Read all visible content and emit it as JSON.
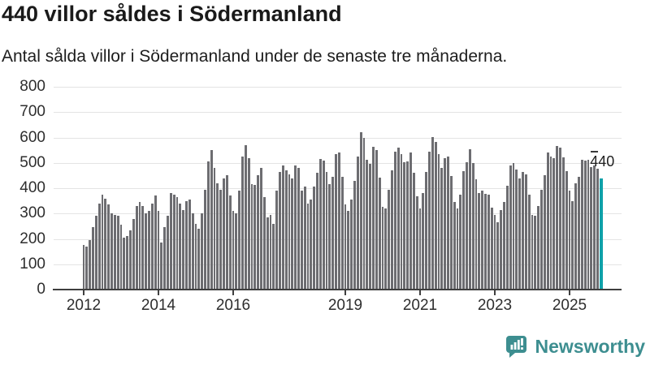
{
  "header": {
    "title": "440 villor såldes i Södermanland",
    "subtitle": "Antal sålda villor i Södermanland under de senaste tre månaderna."
  },
  "chart_data": {
    "type": "bar",
    "title": "440 villor såldes i Södermanland",
    "subtitle": "Antal sålda villor i Södermanland under de senaste tre månaderna.",
    "x_start_month": "2012-01",
    "x_end_month": "2025-11",
    "x_tick_labels": [
      "2012",
      "2014",
      "2016",
      "2019",
      "2021",
      "2023",
      "2025"
    ],
    "x_tick_month_index": [
      0,
      24,
      48,
      84,
      108,
      132,
      156
    ],
    "y_ticks": [
      0,
      100,
      200,
      300,
      400,
      500,
      600,
      700,
      800
    ],
    "ylim": [
      0,
      800
    ],
    "grid": true,
    "values": [
      175,
      170,
      195,
      245,
      290,
      340,
      375,
      360,
      335,
      300,
      295,
      290,
      255,
      205,
      210,
      235,
      280,
      330,
      345,
      330,
      300,
      310,
      340,
      370,
      310,
      185,
      245,
      290,
      380,
      375,
      365,
      340,
      315,
      350,
      355,
      300,
      260,
      240,
      300,
      395,
      505,
      550,
      480,
      420,
      395,
      440,
      450,
      370,
      310,
      300,
      390,
      525,
      570,
      520,
      415,
      412,
      450,
      480,
      365,
      285,
      295,
      260,
      390,
      465,
      490,
      470,
      455,
      440,
      490,
      480,
      390,
      405,
      340,
      355,
      405,
      460,
      515,
      510,
      465,
      415,
      445,
      535,
      540,
      445,
      337,
      310,
      355,
      430,
      525,
      620,
      598,
      513,
      497,
      564,
      550,
      443,
      326,
      321,
      395,
      472,
      543,
      561,
      535,
      503,
      507,
      541,
      461,
      369,
      321,
      382,
      465,
      545,
      603,
      582,
      534,
      481,
      518,
      525,
      447,
      347,
      321,
      376,
      467,
      504,
      555,
      500,
      435,
      382,
      390,
      379,
      376,
      323,
      295,
      265,
      315,
      345,
      410,
      490,
      500,
      475,
      440,
      465,
      455,
      375,
      295,
      290,
      330,
      395,
      450,
      540,
      525,
      518,
      568,
      561,
      523,
      467,
      390,
      350,
      420,
      445,
      513,
      508,
      511,
      483,
      490,
      476,
      440
    ],
    "highlight_last": true,
    "last_value_label": "440",
    "colors": {
      "bar": "#6d6d71",
      "highlight": "#0fa1a9",
      "gridline": "#e4e4e4",
      "axis": "#3f3f3f"
    }
  },
  "branding": {
    "logo_text": "Newsworthy",
    "logo_color": "#3d8e90"
  }
}
